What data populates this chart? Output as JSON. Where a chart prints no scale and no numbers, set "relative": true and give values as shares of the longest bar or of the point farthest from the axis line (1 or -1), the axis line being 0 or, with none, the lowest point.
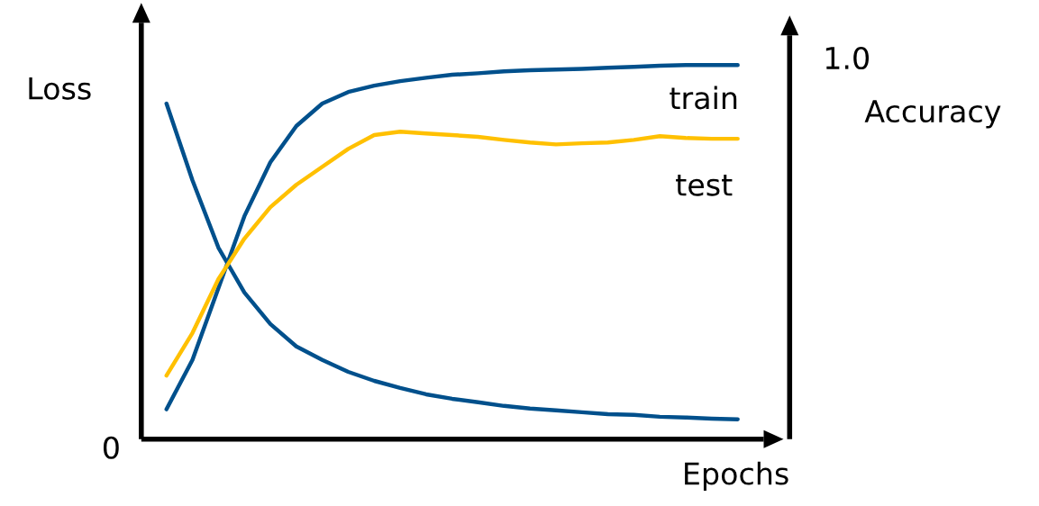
{
  "chart_data": {
    "type": "line",
    "relative": true,
    "tick_labels": false,
    "xlabel": "Epochs",
    "ylabel": "Loss",
    "y2label": "Accuracy",
    "annotations": [
      "1.0",
      "0"
    ],
    "categories": [
      null,
      null,
      null,
      null,
      null,
      null,
      null,
      null,
      null,
      null,
      null,
      null,
      null,
      null,
      null,
      null,
      null,
      null,
      null,
      null,
      null,
      null,
      null
    ],
    "series": [
      {
        "color": "#00508c",
        "values": [
          0.897,
          0.692,
          0.512,
          0.392,
          0.308,
          0.248,
          0.212,
          0.18,
          0.156,
          0.137,
          0.12,
          0.108,
          0.099,
          0.089,
          0.082,
          0.077,
          0.072,
          0.067,
          0.065,
          0.06,
          0.058,
          0.055,
          0.053
        ]
      },
      {
        "name": "train",
        "color": "#00508c",
        "values": [
          0.08,
          0.212,
          0.404,
          0.596,
          0.74,
          0.837,
          0.897,
          0.928,
          0.945,
          0.957,
          0.966,
          0.974,
          0.978,
          0.983,
          0.986,
          0.988,
          0.99,
          0.993,
          0.995,
          0.998,
          1.0,
          1.0,
          1.0
        ]
      },
      {
        "name": "test",
        "color": "#ffc000",
        "values": [
          0.17,
          0.284,
          0.428,
          0.536,
          0.62,
          0.68,
          0.728,
          0.776,
          0.813,
          0.822,
          0.817,
          0.813,
          0.808,
          0.8,
          0.793,
          0.788,
          0.791,
          0.793,
          0.8,
          0.81,
          0.805,
          0.803,
          0.803
        ]
      }
    ]
  }
}
